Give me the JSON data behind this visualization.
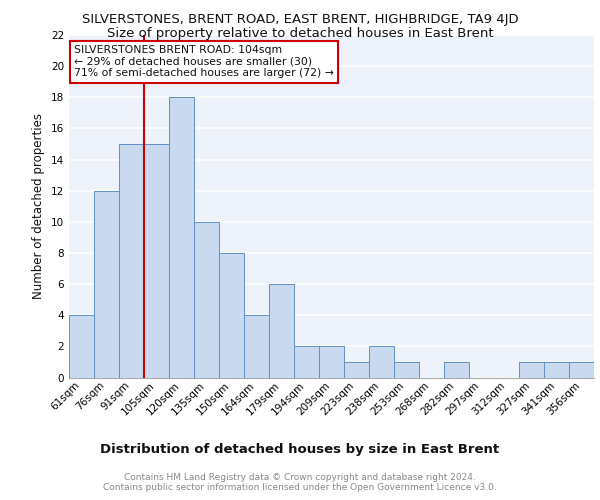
{
  "title": "SILVERSTONES, BRENT ROAD, EAST BRENT, HIGHBRIDGE, TA9 4JD",
  "subtitle": "Size of property relative to detached houses in East Brent",
  "xlabel": "Distribution of detached houses by size in East Brent",
  "ylabel": "Number of detached properties",
  "categories": [
    "61sqm",
    "76sqm",
    "91sqm",
    "105sqm",
    "120sqm",
    "135sqm",
    "150sqm",
    "164sqm",
    "179sqm",
    "194sqm",
    "209sqm",
    "223sqm",
    "238sqm",
    "253sqm",
    "268sqm",
    "282sqm",
    "297sqm",
    "312sqm",
    "327sqm",
    "341sqm",
    "356sqm"
  ],
  "values": [
    4,
    12,
    15,
    15,
    18,
    10,
    8,
    4,
    6,
    2,
    2,
    1,
    2,
    1,
    0,
    1,
    0,
    0,
    1,
    1,
    1
  ],
  "bar_color": "#c8d9f0",
  "bar_edge_color": "#6090c8",
  "red_line_x": 2.5,
  "annotation_text": "SILVERSTONES BRENT ROAD: 104sqm\n← 29% of detached houses are smaller (30)\n71% of semi-detached houses are larger (72) →",
  "annotation_box_color": "#ffffff",
  "annotation_box_edge_color": "#cc0000",
  "ylim": [
    0,
    22
  ],
  "yticks": [
    0,
    2,
    4,
    6,
    8,
    10,
    12,
    14,
    16,
    18,
    20,
    22
  ],
  "background_color": "#edf2fb",
  "grid_color": "#ffffff",
  "footer_text": "Contains HM Land Registry data © Crown copyright and database right 2024.\nContains public sector information licensed under the Open Government Licence v3.0.",
  "title_fontsize": 9.5,
  "subtitle_fontsize": 9.5,
  "xlabel_fontsize": 9.5,
  "ylabel_fontsize": 8.5,
  "tick_fontsize": 7.5,
  "annotation_fontsize": 7.8,
  "footer_fontsize": 6.5
}
